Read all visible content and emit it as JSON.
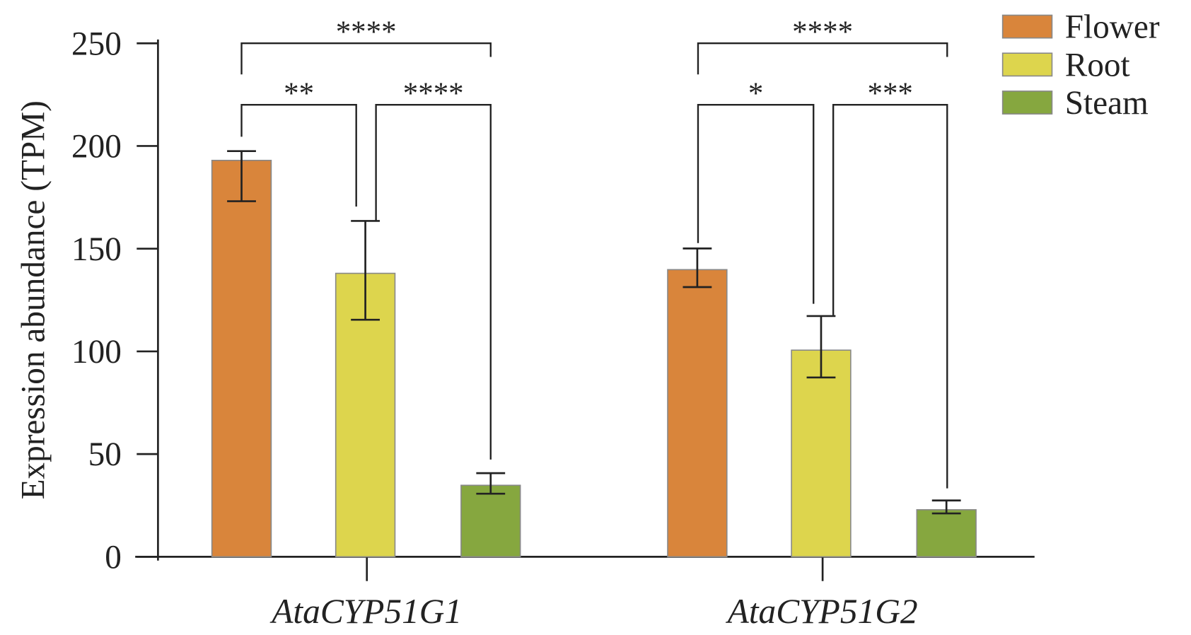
{
  "chart_data": {
    "type": "bar",
    "y_label": "Expression abundance (TPM)",
    "categories": [
      "AtaCYP51G1",
      "AtaCYP51G2"
    ],
    "series": [
      {
        "name": "Flower",
        "color": "#d9853b",
        "values": [
          193,
          139.8
        ],
        "error_bars": [
          [
            173.1,
            197.5
          ],
          [
            131.3,
            150.1
          ]
        ]
      },
      {
        "name": "Root",
        "color": "#ddd54d",
        "values": [
          138,
          100.6
        ],
        "error_bars": [
          [
            115.4,
            163.5
          ],
          [
            87.3,
            117.2
          ]
        ]
      },
      {
        "name": "Steam",
        "color": "#86a73f",
        "values": [
          34.8,
          22.9
        ],
        "error_bars": [
          [
            30.7,
            40.7
          ],
          [
            21.1,
            27.4
          ]
        ]
      }
    ],
    "annotations": [
      "****",
      "**",
      "****",
      "****",
      "*",
      "***"
    ],
    "ylim": [
      0,
      250
    ],
    "yticks": [
      0,
      50,
      100,
      150,
      200,
      250
    ],
    "grid": false,
    "legend": "top-right"
  }
}
